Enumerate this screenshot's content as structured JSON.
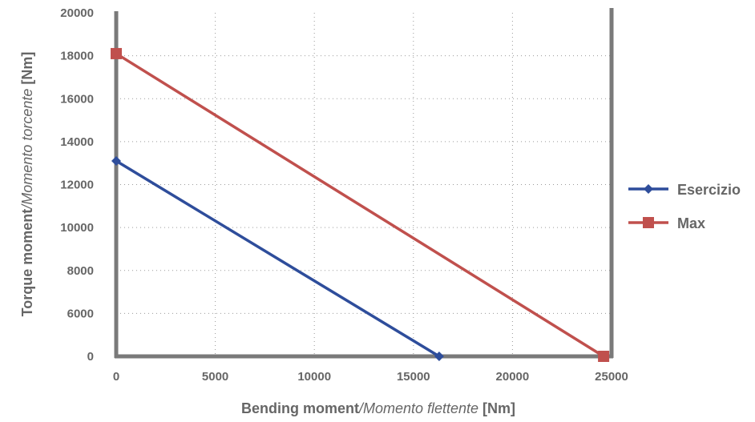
{
  "chart_data": {
    "type": "line",
    "xlabel_bold": "Bending moment",
    "xlabel_italic": "/Momento flettente",
    "xlabel_unit": " [Nm]",
    "ylabel_bold": "Torque moment",
    "ylabel_italic": "/Momento torcente",
    "ylabel_unit": " [Nm]",
    "xlim": [
      0,
      25000
    ],
    "x_ticks": [
      0,
      5000,
      10000,
      15000,
      20000,
      25000
    ],
    "x_tick_labels": [
      "0",
      "5000",
      "10000",
      "15000",
      "20000",
      "25000"
    ],
    "y_ticks": [
      0,
      6000,
      8000,
      10000,
      12000,
      14000,
      16000,
      18000,
      20000
    ],
    "y_tick_labels": [
      "0",
      "6000",
      "8000",
      "10000",
      "12000",
      "14000",
      "16000",
      "18000",
      "20000"
    ],
    "y_axis_note": "category-like spacing: 0 and 6000 adjacent, then every 2000",
    "grid": "dotted",
    "legend_position": "right",
    "series": [
      {
        "name": "Esercizio",
        "color": "#2e4d9b",
        "marker": "diamond",
        "points": [
          [
            0,
            13100
          ],
          [
            16300,
            0
          ]
        ]
      },
      {
        "name": "Max",
        "color": "#c0504d",
        "marker": "square",
        "points": [
          [
            0,
            18100
          ],
          [
            24600,
            0
          ]
        ]
      }
    ]
  }
}
